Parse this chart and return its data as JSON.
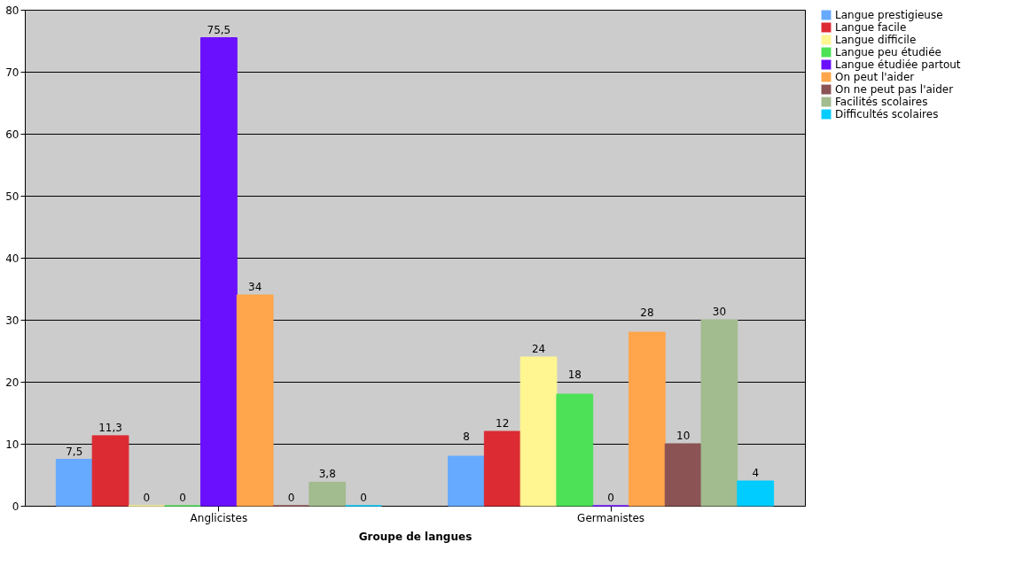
{
  "chart_data": {
    "type": "bar",
    "xlabel": "Groupe de langues",
    "categories": [
      "Anglicistes",
      "Germanistes"
    ],
    "series": [
      {
        "name": "Langue prestigieuse",
        "color": "#66aaff",
        "values": [
          7.5,
          8
        ],
        "value_labels": [
          "7,5",
          "8"
        ]
      },
      {
        "name": "Langue facile",
        "color": "#dd2b33",
        "values": [
          11.3,
          12
        ],
        "value_labels": [
          "11,3",
          "12"
        ]
      },
      {
        "name": "Langue difficile",
        "color": "#fff591",
        "values": [
          0,
          24
        ],
        "value_labels": [
          "0",
          "24"
        ]
      },
      {
        "name": "Langue peu étudiée",
        "color": "#4ce157",
        "values": [
          0,
          18
        ],
        "value_labels": [
          "0",
          "18"
        ]
      },
      {
        "name": "Langue étudiée partout",
        "color": "#6b10ff",
        "values": [
          75.5,
          0
        ],
        "value_labels": [
          "75,5",
          "0"
        ]
      },
      {
        "name": "On peut l'aider",
        "color": "#ffa64d",
        "values": [
          34,
          28
        ],
        "value_labels": [
          "34",
          "28"
        ]
      },
      {
        "name": "On ne peut pas l'aider",
        "color": "#8b5353",
        "values": [
          0,
          10
        ],
        "value_labels": [
          "0",
          "10"
        ]
      },
      {
        "name": "Facilités scolaires",
        "color": "#a2bb8f",
        "values": [
          3.8,
          30
        ],
        "value_labels": [
          "3,8",
          "30"
        ]
      },
      {
        "name": "Difficultés scolaires",
        "color": "#00ccff",
        "values": [
          0,
          4
        ],
        "value_labels": [
          "0",
          "4"
        ]
      }
    ],
    "ylim": [
      0,
      80
    ],
    "yticks": [
      0,
      10,
      20,
      30,
      40,
      50,
      60,
      70,
      80
    ],
    "grid": "y",
    "legend": "right"
  }
}
